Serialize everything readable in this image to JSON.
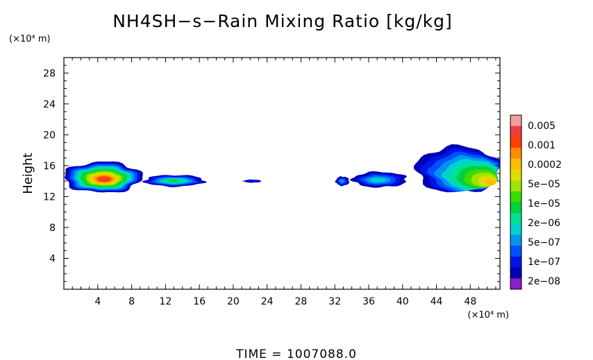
{
  "chart_data": {
    "type": "heatmap",
    "title": "NH4SH−s−Rain Mixing Ratio [kg/kg]",
    "ylabel": "Height",
    "y_unit": "(×10⁴ m)",
    "x_unit": "(×10⁴ m)",
    "xlim": [
      0,
      51.5
    ],
    "ylim": [
      0,
      30
    ],
    "x_ticks": [
      4,
      8,
      12,
      16,
      20,
      24,
      28,
      32,
      36,
      40,
      44,
      48
    ],
    "y_ticks": [
      4,
      8,
      12,
      16,
      20,
      24,
      28
    ],
    "x_tick_labels": [
      "4",
      "8",
      "12",
      "16",
      "20",
      "24",
      "28",
      "32",
      "36",
      "40",
      "44",
      "48"
    ],
    "y_tick_labels": [
      "4",
      "8",
      "12",
      "16",
      "20",
      "24",
      "28"
    ],
    "time_text": "TIME  =  1007088.0",
    "colorbar": {
      "labels": [
        "0.005",
        "0.001",
        "0.0002",
        "5e−05",
        "1e−05",
        "2e−06",
        "5e−07",
        "1e−07",
        "2e−08"
      ],
      "colors_top_to_bottom": [
        "#f59c9c",
        "#f03c3c",
        "#ff4000",
        "#ff8c00",
        "#ffbe00",
        "#dede00",
        "#9ee600",
        "#3cdc00",
        "#00d23c",
        "#00e096",
        "#00d2d2",
        "#0096f0",
        "#0050ff",
        "#0014e6",
        "#0000b4",
        "#8c1ec8"
      ]
    },
    "cloud_regions": [
      {
        "x_range": [
          0,
          9.2
        ],
        "z_range": [
          12.5,
          16.5
        ],
        "peak_level": "0.005",
        "peak_x": 4.8,
        "peak_z": 14.2
      },
      {
        "x_range": [
          9.5,
          16.6
        ],
        "z_range": [
          13.3,
          14.8
        ],
        "peak_level": "1e-05",
        "peak_x": 13,
        "peak_z": 14
      },
      {
        "x_range": [
          21.2,
          23.3
        ],
        "z_range": [
          13.8,
          14.2
        ],
        "peak_level": "1e-07",
        "peak_x": 22.2,
        "peak_z": 14
      },
      {
        "x_range": [
          32.1,
          33.7
        ],
        "z_range": [
          13.4,
          14.6
        ],
        "peak_level": "1e-06",
        "peak_x": 32.8,
        "peak_z": 14
      },
      {
        "x_range": [
          34.1,
          40.5
        ],
        "z_range": [
          13.2,
          15.2
        ],
        "peak_level": "2e-06",
        "peak_x": 37,
        "peak_z": 14.1
      },
      {
        "x_range": [
          41.6,
          51.5
        ],
        "z_range": [
          12.5,
          18.5
        ],
        "peak_level": "0.0002",
        "peak_x": 51,
        "peak_z": 13.6
      }
    ]
  }
}
